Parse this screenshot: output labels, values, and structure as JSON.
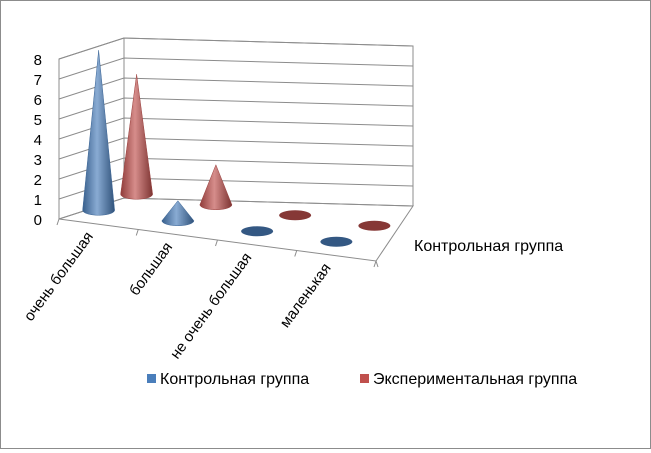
{
  "chart_data": {
    "type": "3d-cone",
    "categories": [
      "очень большая",
      "большая",
      "не очень большая",
      "маленькая"
    ],
    "series": [
      {
        "name": "Контрольная группа",
        "values": [
          8,
          1,
          0,
          0
        ],
        "color": "#4a7ebb"
      },
      {
        "name": "Экспериментальная группа",
        "values": [
          6,
          2,
          0,
          0
        ],
        "color": "#c0504d"
      }
    ],
    "yticks": [
      "0",
      "1",
      "2",
      "3",
      "4",
      "5",
      "6",
      "7",
      "8"
    ],
    "ylim": [
      0,
      8
    ],
    "depth_label": "Контрольная группа",
    "grid": true,
    "legend_position": "bottom"
  }
}
